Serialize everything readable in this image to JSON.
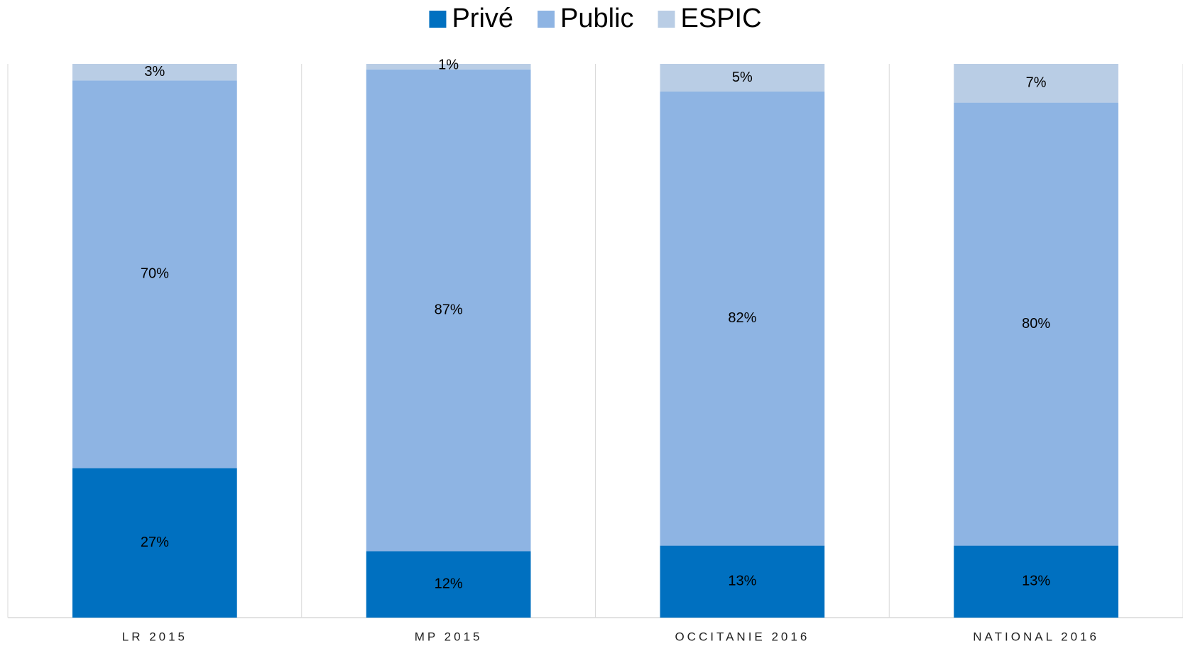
{
  "chart_data": {
    "type": "stacked_bar",
    "categories": [
      "LR 2015",
      "MP 2015",
      "OCCITANIE 2016",
      "NATIONAL 2016"
    ],
    "series": [
      {
        "name": "Privé",
        "color": "#0070c0",
        "values": [
          27,
          12,
          13,
          13
        ],
        "value_labels": [
          "27%",
          "12%",
          "13%",
          "13%"
        ]
      },
      {
        "name": "Public",
        "color": "#8eb4e3",
        "values": [
          70,
          87,
          82,
          80
        ],
        "value_labels": [
          "70%",
          "87%",
          "82%",
          "80%"
        ]
      },
      {
        "name": "ESPIC",
        "color": "#b9cde5",
        "values": [
          3,
          1,
          5,
          7
        ],
        "value_labels": [
          "3%",
          "1%",
          "5%",
          "7%"
        ]
      }
    ],
    "ylim": [
      0,
      100
    ],
    "legend": "top"
  }
}
